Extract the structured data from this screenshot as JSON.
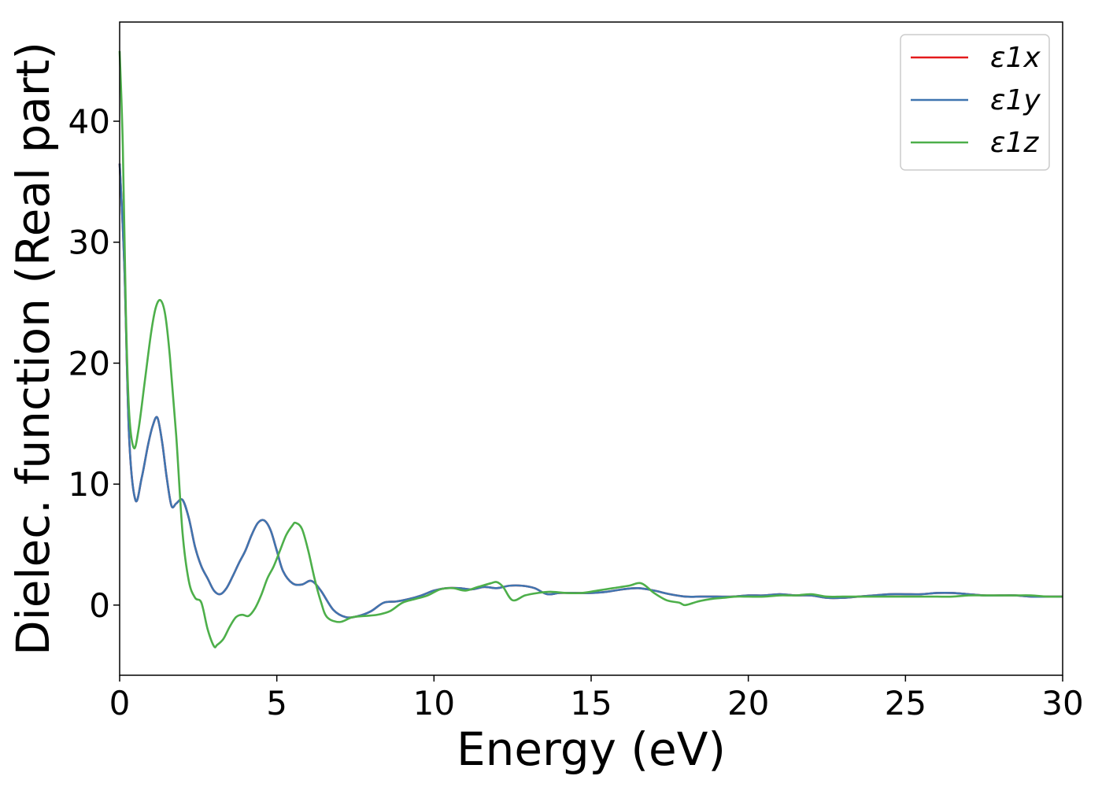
{
  "chart_data": {
    "type": "line",
    "title": "",
    "xlabel": "Energy (eV)",
    "ylabel": "Dielec. function (Real part)",
    "xlim": [
      0,
      30
    ],
    "ylim": [
      -5.8,
      48.2
    ],
    "x_ticks": [
      0,
      5,
      10,
      15,
      20,
      25,
      30
    ],
    "y_ticks": [
      0,
      10,
      20,
      30,
      40
    ],
    "grid": false,
    "legend_position": "top-right",
    "colors": {
      "e1x": "#e41a1c",
      "e1y": "#3f75b0",
      "e1z": "#4daf4a"
    },
    "series": [
      {
        "name": "ε1x",
        "key": "e1x",
        "x": [
          0.0,
          0.15,
          0.3,
          0.5,
          0.7,
          0.9,
          1.05,
          1.2,
          1.35,
          1.5,
          1.65,
          1.8,
          2.0,
          2.2,
          2.4,
          2.6,
          2.8,
          3.0,
          3.2,
          3.4,
          3.6,
          3.8,
          4.0,
          4.2,
          4.4,
          4.6,
          4.8,
          5.0,
          5.2,
          5.5,
          5.8,
          6.1,
          6.4,
          6.8,
          7.2,
          7.6,
          8.0,
          8.4,
          8.8,
          9.2,
          9.6,
          10.0,
          10.4,
          10.8,
          11.2,
          11.6,
          12.0,
          12.4,
          12.8,
          13.2,
          13.6,
          14.0,
          14.5,
          15.0,
          15.5,
          16.0,
          16.5,
          17.0,
          17.5,
          18.0,
          18.5,
          19.0,
          19.5,
          20.0,
          20.5,
          21.0,
          21.5,
          22.0,
          22.5,
          23.0,
          23.5,
          24.0,
          24.5,
          25.0,
          25.5,
          26.0,
          26.5,
          27.0,
          27.5,
          28.0,
          28.5,
          29.0,
          29.5,
          30.0
        ],
        "y": [
          36.5,
          28.0,
          14.0,
          8.7,
          10.5,
          13.2,
          14.8,
          15.5,
          13.5,
          10.5,
          8.2,
          8.4,
          8.7,
          7.2,
          4.8,
          3.2,
          2.2,
          1.2,
          0.9,
          1.4,
          2.4,
          3.5,
          4.5,
          5.8,
          6.8,
          7.0,
          6.2,
          4.5,
          2.8,
          1.8,
          1.7,
          2.0,
          1.2,
          -0.4,
          -1.0,
          -0.9,
          -0.5,
          0.2,
          0.3,
          0.5,
          0.8,
          1.2,
          1.4,
          1.4,
          1.3,
          1.5,
          1.4,
          1.6,
          1.6,
          1.4,
          0.9,
          1.0,
          1.0,
          1.0,
          1.1,
          1.3,
          1.4,
          1.2,
          0.9,
          0.7,
          0.7,
          0.7,
          0.7,
          0.8,
          0.8,
          0.9,
          0.8,
          0.8,
          0.6,
          0.6,
          0.7,
          0.8,
          0.9,
          0.9,
          0.9,
          1.0,
          1.0,
          0.9,
          0.8,
          0.8,
          0.8,
          0.7,
          0.7,
          0.7
        ]
      },
      {
        "name": "ε1y",
        "key": "e1y",
        "x": [
          0.0,
          0.15,
          0.3,
          0.5,
          0.7,
          0.9,
          1.05,
          1.2,
          1.35,
          1.5,
          1.65,
          1.8,
          2.0,
          2.2,
          2.4,
          2.6,
          2.8,
          3.0,
          3.2,
          3.4,
          3.6,
          3.8,
          4.0,
          4.2,
          4.4,
          4.6,
          4.8,
          5.0,
          5.2,
          5.5,
          5.8,
          6.1,
          6.4,
          6.8,
          7.2,
          7.6,
          8.0,
          8.4,
          8.8,
          9.2,
          9.6,
          10.0,
          10.4,
          10.8,
          11.2,
          11.6,
          12.0,
          12.4,
          12.8,
          13.2,
          13.6,
          14.0,
          14.5,
          15.0,
          15.5,
          16.0,
          16.5,
          17.0,
          17.5,
          18.0,
          18.5,
          19.0,
          19.5,
          20.0,
          20.5,
          21.0,
          21.5,
          22.0,
          22.5,
          23.0,
          23.5,
          24.0,
          24.5,
          25.0,
          25.5,
          26.0,
          26.5,
          27.0,
          27.5,
          28.0,
          28.5,
          29.0,
          29.5,
          30.0
        ],
        "y": [
          36.5,
          28.0,
          14.0,
          8.7,
          10.5,
          13.2,
          14.8,
          15.5,
          13.5,
          10.5,
          8.2,
          8.4,
          8.7,
          7.2,
          4.8,
          3.2,
          2.2,
          1.2,
          0.9,
          1.4,
          2.4,
          3.5,
          4.5,
          5.8,
          6.8,
          7.0,
          6.2,
          4.5,
          2.8,
          1.8,
          1.7,
          2.0,
          1.2,
          -0.4,
          -1.0,
          -0.9,
          -0.5,
          0.2,
          0.3,
          0.5,
          0.8,
          1.2,
          1.4,
          1.4,
          1.3,
          1.5,
          1.4,
          1.6,
          1.6,
          1.4,
          0.9,
          1.0,
          1.0,
          1.0,
          1.1,
          1.3,
          1.4,
          1.2,
          0.9,
          0.7,
          0.7,
          0.7,
          0.7,
          0.8,
          0.8,
          0.9,
          0.8,
          0.8,
          0.6,
          0.6,
          0.7,
          0.8,
          0.9,
          0.9,
          0.9,
          1.0,
          1.0,
          0.9,
          0.8,
          0.8,
          0.8,
          0.7,
          0.7,
          0.7
        ]
      },
      {
        "name": "ε1z",
        "key": "e1z",
        "x": [
          0.0,
          0.1,
          0.2,
          0.3,
          0.45,
          0.6,
          0.8,
          1.0,
          1.15,
          1.3,
          1.45,
          1.6,
          1.8,
          2.0,
          2.2,
          2.4,
          2.6,
          2.8,
          3.0,
          3.1,
          3.3,
          3.5,
          3.7,
          3.9,
          4.1,
          4.3,
          4.5,
          4.7,
          4.9,
          5.1,
          5.3,
          5.5,
          5.6,
          5.8,
          6.0,
          6.2,
          6.4,
          6.6,
          7.0,
          7.4,
          7.8,
          8.2,
          8.6,
          9.0,
          9.4,
          9.8,
          10.2,
          10.6,
          11.0,
          11.4,
          11.8,
          12.0,
          12.2,
          12.5,
          12.9,
          13.3,
          13.7,
          14.2,
          14.7,
          15.2,
          15.7,
          16.2,
          16.6,
          17.0,
          17.4,
          17.8,
          18.0,
          18.4,
          18.8,
          19.2,
          19.6,
          20.0,
          20.5,
          21.0,
          21.5,
          22.0,
          22.5,
          23.0,
          23.5,
          24.0,
          24.5,
          25.0,
          25.5,
          26.0,
          26.5,
          27.0,
          27.5,
          28.0,
          28.5,
          29.0,
          29.5,
          30.0
        ],
        "y": [
          45.8,
          38.0,
          24.0,
          16.0,
          13.0,
          14.5,
          18.5,
          22.5,
          24.6,
          25.2,
          24.0,
          20.5,
          14.0,
          6.0,
          2.0,
          0.6,
          0.2,
          -2.0,
          -3.4,
          -3.3,
          -2.8,
          -1.8,
          -1.0,
          -0.8,
          -0.9,
          -0.3,
          0.8,
          2.2,
          3.2,
          4.5,
          5.8,
          6.6,
          6.8,
          6.3,
          4.5,
          2.2,
          0.3,
          -1.0,
          -1.4,
          -1.0,
          -0.9,
          -0.8,
          -0.5,
          0.2,
          0.5,
          0.8,
          1.3,
          1.4,
          1.2,
          1.5,
          1.8,
          1.9,
          1.5,
          0.4,
          0.8,
          1.0,
          1.1,
          1.0,
          1.0,
          1.2,
          1.4,
          1.6,
          1.8,
          1.0,
          0.4,
          0.2,
          0.0,
          0.3,
          0.5,
          0.6,
          0.7,
          0.7,
          0.7,
          0.8,
          0.8,
          0.9,
          0.7,
          0.7,
          0.7,
          0.7,
          0.7,
          0.7,
          0.7,
          0.7,
          0.7,
          0.8,
          0.8,
          0.8,
          0.8,
          0.8,
          0.7,
          0.7
        ]
      }
    ]
  }
}
